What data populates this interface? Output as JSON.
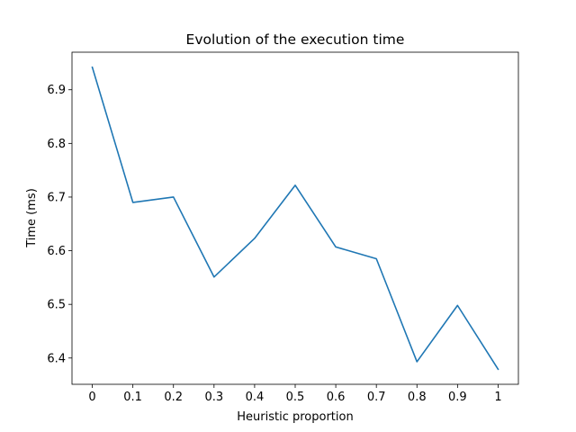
{
  "chart_data": {
    "type": "line",
    "title": "Evolution of the execution time",
    "xlabel": "Heuristic proportion",
    "ylabel": "Time (ms)",
    "x": [
      0,
      0.1,
      0.2,
      0.3,
      0.4,
      0.5,
      0.6,
      0.7,
      0.8,
      0.9,
      1
    ],
    "x_tick_labels": [
      "0",
      "0.1",
      "0.2",
      "0.3",
      "0.4",
      "0.5",
      "0.6",
      "0.7",
      "0.8",
      "0.9",
      "1"
    ],
    "y_ticks": [
      6.4,
      6.5,
      6.6,
      6.7,
      6.8,
      6.9
    ],
    "y_tick_labels": [
      "6.4",
      "6.5",
      "6.6",
      "6.7",
      "6.8",
      "6.9"
    ],
    "series": [
      {
        "values": [
          6.942,
          6.69,
          6.7,
          6.551,
          6.623,
          6.722,
          6.607,
          6.585,
          6.393,
          6.498,
          6.379
        ],
        "color": "#1f77b4"
      }
    ],
    "xlim": [
      -0.05,
      1.05
    ],
    "ylim": [
      6.351,
      6.97
    ],
    "grid": false,
    "legend": "none"
  }
}
